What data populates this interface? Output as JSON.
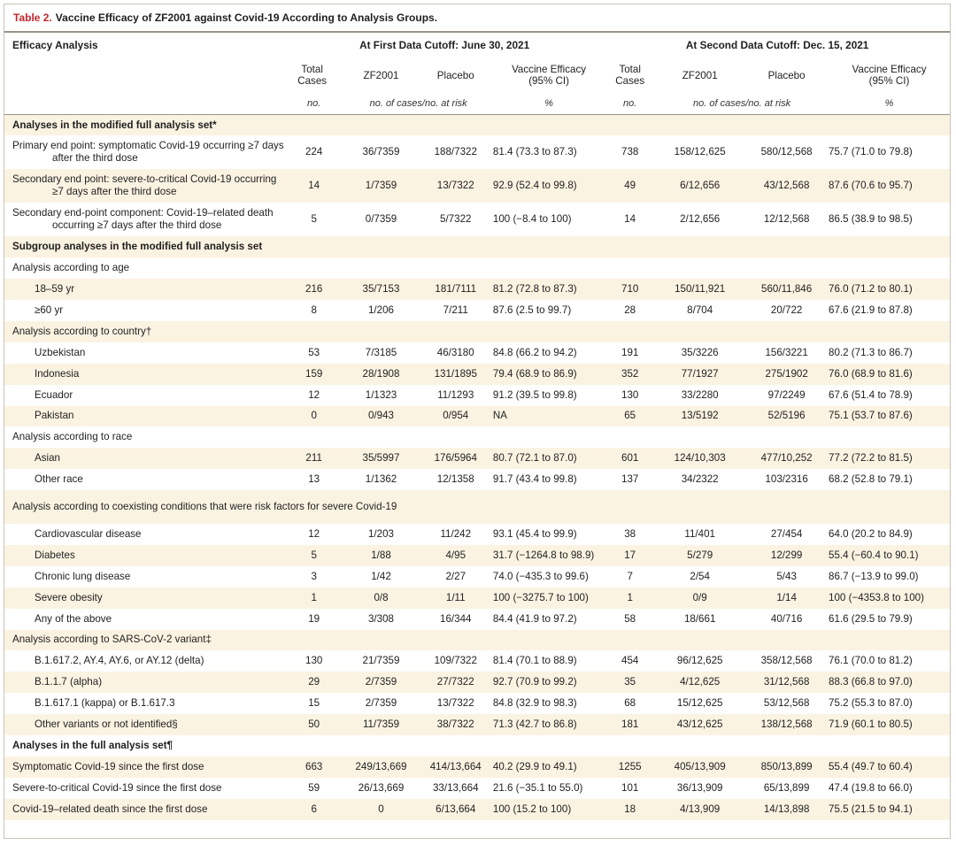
{
  "title": {
    "number": "Table 2.",
    "text": "Vaccine Efficacy of ZF2001 against Covid-19 According to Analysis Groups."
  },
  "header": {
    "efficacy_analysis": "Efficacy Analysis",
    "first_cutoff": "At First Data Cutoff: June 30, 2021",
    "second_cutoff": "At Second Data Cutoff: Dec. 15, 2021",
    "col_total_cases": "Total Cases",
    "col_zf2001": "ZF2001",
    "col_placebo": "Placebo",
    "col_ve": "Vaccine Efficacy (95% CI)",
    "unit_no": "no.",
    "unit_cases_risk": "no. of cases/no. at risk",
    "unit_pct": "%"
  },
  "rows": [
    {
      "kind": "section",
      "label": "Analyses in the modified full analysis set*",
      "shade": true
    },
    {
      "kind": "data",
      "label": "Primary end point: symptomatic Covid-19 occurring ≥7 days after the third dose",
      "wrap": true,
      "v": [
        "224",
        "36/7359",
        "188/7322",
        "81.4 (73.3 to 87.3)",
        "738",
        "158/12,625",
        "580/12,568",
        "75.7 (71.0 to 79.8)"
      ],
      "shade": false
    },
    {
      "kind": "data",
      "label": "Secondary end point: severe-to-critical Covid-19 occurring ≥7 days after the third dose",
      "wrap": true,
      "v": [
        "14",
        "1/7359",
        "13/7322",
        "92.9 (52.4 to 99.8)",
        "49",
        "6/12,656",
        "43/12,568",
        "87.6 (70.6 to 95.7)"
      ],
      "shade": true
    },
    {
      "kind": "data",
      "label": "Secondary end-point component: Covid-19–related death occurring ≥7 days after the third dose",
      "wrap": true,
      "v": [
        "5",
        "0/7359",
        "5/7322",
        "100 (−8.4 to 100)",
        "14",
        "2/12,656",
        "12/12,568",
        "86.5 (38.9 to 98.5)"
      ],
      "shade": false
    },
    {
      "kind": "section",
      "label": "Subgroup analyses in the modified full analysis set",
      "shade": true
    },
    {
      "kind": "group",
      "label": "Analysis according to age",
      "shade": false
    },
    {
      "kind": "data",
      "label": "18–59 yr",
      "indent": true,
      "v": [
        "216",
        "35/7153",
        "181/7111",
        "81.2 (72.8 to 87.3)",
        "710",
        "150/11,921",
        "560/11,846",
        "76.0 (71.2 to 80.1)"
      ],
      "shade": true
    },
    {
      "kind": "data",
      "label": "≥60 yr",
      "indent": true,
      "v": [
        "8",
        "1/206",
        "7/211",
        "87.6 (2.5 to 99.7)",
        "28",
        "8/704",
        "20/722",
        "67.6 (21.9 to 87.8)"
      ],
      "shade": false
    },
    {
      "kind": "group",
      "label": "Analysis according to country†",
      "shade": true
    },
    {
      "kind": "data",
      "label": "Uzbekistan",
      "indent": true,
      "v": [
        "53",
        "7/3185",
        "46/3180",
        "84.8 (66.2 to 94.2)",
        "191",
        "35/3226",
        "156/3221",
        "80.2 (71.3 to 86.7)"
      ],
      "shade": false
    },
    {
      "kind": "data",
      "label": "Indonesia",
      "indent": true,
      "v": [
        "159",
        "28/1908",
        "131/1895",
        "79.4 (68.9 to 86.9)",
        "352",
        "77/1927",
        "275/1902",
        "76.0 (68.9 to 81.6)"
      ],
      "shade": true
    },
    {
      "kind": "data",
      "label": "Ecuador",
      "indent": true,
      "v": [
        "12",
        "1/1323",
        "11/1293",
        "91.2 (39.5 to 99.8)",
        "130",
        "33/2280",
        "97/2249",
        "67.6 (51.4 to 78.9)"
      ],
      "shade": false
    },
    {
      "kind": "data",
      "label": "Pakistan",
      "indent": true,
      "v": [
        "0",
        "0/943",
        "0/954",
        "NA",
        "65",
        "13/5192",
        "52/5196",
        "75.1 (53.7 to 87.6)"
      ],
      "shade": true
    },
    {
      "kind": "group",
      "label": "Analysis according to race",
      "shade": false
    },
    {
      "kind": "data",
      "label": "Asian",
      "indent": true,
      "v": [
        "211",
        "35/5997",
        "176/5964",
        "80.7 (72.1 to 87.0)",
        "601",
        "124/10,303",
        "477/10,252",
        "77.2 (72.2 to 81.5)"
      ],
      "shade": true
    },
    {
      "kind": "data",
      "label": "Other race",
      "indent": true,
      "v": [
        "13",
        "1/1362",
        "12/1358",
        "91.7 (43.4 to 99.8)",
        "137",
        "34/2322",
        "103/2316",
        "68.2 (52.8 to 79.1)"
      ],
      "shade": false
    },
    {
      "kind": "group",
      "label": "Analysis according to coexisting conditions that were risk factors for severe Covid-19",
      "wrap": true,
      "shade": true
    },
    {
      "kind": "data",
      "label": "Cardiovascular disease",
      "indent": true,
      "v": [
        "12",
        "1/203",
        "11/242",
        "93.1 (45.4 to 99.9)",
        "38",
        "11/401",
        "27/454",
        "64.0 (20.2 to 84.9)"
      ],
      "shade": false
    },
    {
      "kind": "data",
      "label": "Diabetes",
      "indent": true,
      "v": [
        "5",
        "1/88",
        "4/95",
        "31.7 (−1264.8 to 98.9)",
        "17",
        "5/279",
        "12/299",
        "55.4 (−60.4 to 90.1)"
      ],
      "shade": true
    },
    {
      "kind": "data",
      "label": "Chronic lung disease",
      "indent": true,
      "v": [
        "3",
        "1/42",
        "2/27",
        "74.0 (−435.3 to 99.6)",
        "7",
        "2/54",
        "5/43",
        "86.7 (−13.9 to 99.0)"
      ],
      "shade": false
    },
    {
      "kind": "data",
      "label": "Severe obesity",
      "indent": true,
      "v": [
        "1",
        "0/8",
        "1/11",
        "100 (−3275.7 to 100)",
        "1",
        "0/9",
        "1/14",
        "100 (−4353.8 to 100)"
      ],
      "shade": true
    },
    {
      "kind": "data",
      "label": "Any of the above",
      "indent": true,
      "v": [
        "19",
        "3/308",
        "16/344",
        "84.4 (41.9 to 97.2)",
        "58",
        "18/661",
        "40/716",
        "61.6 (29.5 to 79.9)"
      ],
      "shade": false
    },
    {
      "kind": "group",
      "label": "Analysis according to SARS-CoV-2 variant‡",
      "shade": true
    },
    {
      "kind": "data",
      "label": "B.1.617.2, AY.4, AY.6, or AY.12 (delta)",
      "indent": true,
      "v": [
        "130",
        "21/7359",
        "109/7322",
        "81.4 (70.1 to 88.9)",
        "454",
        "96/12,625",
        "358/12,568",
        "76.1 (70.0 to 81.2)"
      ],
      "shade": false
    },
    {
      "kind": "data",
      "label": "B.1.1.7 (alpha)",
      "indent": true,
      "v": [
        "29",
        "2/7359",
        "27/7322",
        "92.7 (70.9 to 99.2)",
        "35",
        "4/12,625",
        "31/12,568",
        "88.3 (66.8 to 97.0)"
      ],
      "shade": true
    },
    {
      "kind": "data",
      "label": "B.1.617.1 (kappa) or B.1.617.3",
      "indent": true,
      "v": [
        "15",
        "2/7359",
        "13/7322",
        "84.8 (32.9 to 98.3)",
        "68",
        "15/12,625",
        "53/12,568",
        "75.2 (55.3 to 87.0)"
      ],
      "shade": false
    },
    {
      "kind": "data",
      "label": "Other variants or not identified§",
      "indent": true,
      "v": [
        "50",
        "11/7359",
        "38/7322",
        "71.3 (42.7 to 86.8)",
        "181",
        "43/12,625",
        "138/12,568",
        "71.9 (60.1 to 80.5)"
      ],
      "shade": true
    },
    {
      "kind": "section",
      "label": "Analyses in the full analysis set¶",
      "shade": false
    },
    {
      "kind": "data",
      "label": "Symptomatic Covid-19 since the first dose",
      "v": [
        "663",
        "249/13,669",
        "414/13,664",
        "40.2 (29.9 to 49.1)",
        "1255",
        "405/13,909",
        "850/13,899",
        "55.4 (49.7 to 60.4)"
      ],
      "shade": true
    },
    {
      "kind": "data",
      "label": "Severe-to-critical Covid-19 since the first dose",
      "v": [
        "59",
        "26/13,669",
        "33/13,664",
        "21.6 (−35.1 to 55.0)",
        "101",
        "36/13,909",
        "65/13,899",
        "47.4 (19.8 to 66.0)"
      ],
      "shade": false
    },
    {
      "kind": "data",
      "label": "Covid-19–related death since the first dose",
      "v": [
        "6",
        "0",
        "6/13,664",
        "100 (15.2 to 100)",
        "18",
        "4/13,909",
        "14/13,898",
        "75.5 (21.5 to 94.1)"
      ],
      "shade": true
    }
  ]
}
